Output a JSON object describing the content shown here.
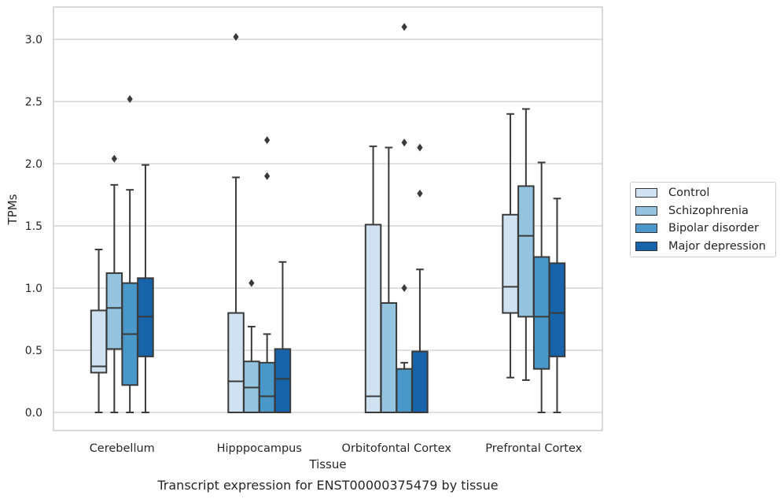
{
  "chart_data": {
    "type": "boxplot",
    "caption": "Transcript expression for ENST00000375479 by tissue",
    "xlabel": "Tissue",
    "ylabel": "TPMs",
    "ylim": [
      -0.15,
      3.25
    ],
    "yticks": [
      0.0,
      0.5,
      1.0,
      1.5,
      2.0,
      2.5,
      3.0
    ],
    "ytick_labels": [
      "0.0",
      "0.5",
      "1.0",
      "1.5",
      "2.0",
      "2.5",
      "3.0"
    ],
    "grid": "horizontal",
    "legend_position": "right",
    "categories": [
      "Cerebellum",
      "Hipppocampus",
      "Orbitofontal Cortex",
      "Prefrontal Cortex"
    ],
    "series": [
      {
        "name": "Control",
        "color": "#d0e1f2",
        "boxes": [
          {
            "whislo": 0.0,
            "q1": 0.32,
            "med": 0.37,
            "q3": 0.82,
            "whishi": 1.31,
            "fliers": []
          },
          {
            "whislo": 0.0,
            "q1": 0.0,
            "med": 0.25,
            "q3": 0.8,
            "whishi": 1.89,
            "fliers": [
              3.02
            ]
          },
          {
            "whislo": 0.0,
            "q1": 0.0,
            "med": 0.13,
            "q3": 1.51,
            "whishi": 2.14,
            "fliers": []
          },
          {
            "whislo": 0.28,
            "q1": 0.8,
            "med": 1.01,
            "q3": 1.59,
            "whishi": 2.4,
            "fliers": []
          }
        ]
      },
      {
        "name": "Schizophrenia",
        "color": "#94c4df",
        "boxes": [
          {
            "whislo": 0.0,
            "q1": 0.51,
            "med": 0.84,
            "q3": 1.12,
            "whishi": 1.83,
            "fliers": [
              2.04
            ]
          },
          {
            "whislo": 0.0,
            "q1": 0.0,
            "med": 0.2,
            "q3": 0.41,
            "whishi": 0.69,
            "fliers": [
              1.04
            ]
          },
          {
            "whislo": 0.0,
            "q1": 0.0,
            "med": 0.0,
            "q3": 0.88,
            "whishi": 2.13,
            "fliers": []
          },
          {
            "whislo": 0.26,
            "q1": 0.77,
            "med": 1.42,
            "q3": 1.82,
            "whishi": 2.44,
            "fliers": []
          }
        ]
      },
      {
        "name": "Bipolar disorder",
        "color": "#4a98c9",
        "boxes": [
          {
            "whislo": 0.0,
            "q1": 0.22,
            "med": 0.63,
            "q3": 1.04,
            "whishi": 1.79,
            "fliers": [
              2.52
            ]
          },
          {
            "whislo": 0.0,
            "q1": 0.0,
            "med": 0.13,
            "q3": 0.4,
            "whishi": 0.63,
            "fliers": [
              1.9,
              2.19
            ]
          },
          {
            "whislo": 0.0,
            "q1": 0.0,
            "med": 0.0,
            "q3": 0.35,
            "whishi": 0.4,
            "fliers": [
              1.0,
              2.17,
              3.1
            ]
          },
          {
            "whislo": 0.0,
            "q1": 0.35,
            "med": 0.77,
            "q3": 1.25,
            "whishi": 2.01,
            "fliers": []
          }
        ]
      },
      {
        "name": "Major depression",
        "color": "#1764ab",
        "boxes": [
          {
            "whislo": 0.0,
            "q1": 0.45,
            "med": 0.77,
            "q3": 1.08,
            "whishi": 1.99,
            "fliers": []
          },
          {
            "whislo": 0.0,
            "q1": 0.0,
            "med": 0.27,
            "q3": 0.51,
            "whishi": 1.21,
            "fliers": []
          },
          {
            "whislo": 0.0,
            "q1": 0.0,
            "med": 0.0,
            "q3": 0.49,
            "whishi": 1.15,
            "fliers": [
              1.76,
              2.13
            ]
          },
          {
            "whislo": 0.0,
            "q1": 0.45,
            "med": 0.8,
            "q3": 1.2,
            "whishi": 1.72,
            "fliers": []
          }
        ]
      }
    ]
  }
}
